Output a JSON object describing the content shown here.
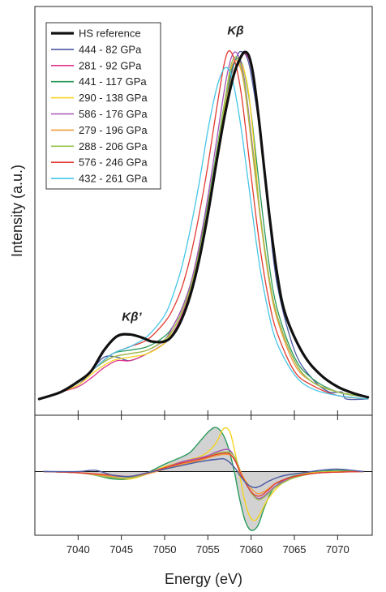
{
  "chart_data": [
    {
      "type": "line",
      "panel": "spectra",
      "ylabel": "Intensity (a.u.)",
      "xlim": [
        7035,
        7074
      ],
      "ylim": [
        0,
        1.0
      ],
      "grid": false,
      "legend_position": "top-left",
      "annotations": [
        {
          "text": "Kβ",
          "x": 7058.2,
          "y": 1.045
        },
        {
          "text": "Kβ’",
          "x": 7046.2,
          "y": 0.225
        }
      ],
      "series": [
        {
          "name": "HS reference",
          "color": "#111111",
          "width": 3.2,
          "x": [
            7035.5,
            7038,
            7040,
            7041.5,
            7043,
            7044.5,
            7046,
            7047.5,
            7048.5,
            7050,
            7051,
            7052,
            7053,
            7054,
            7055,
            7056,
            7057,
            7058,
            7058.8,
            7059.3,
            7059.8,
            7060.3,
            7061,
            7062,
            7063,
            7064,
            7066,
            7068,
            7070,
            7072,
            7073.5
          ],
          "y": [
            0.0,
            0.02,
            0.05,
            0.08,
            0.14,
            0.18,
            0.185,
            0.175,
            0.165,
            0.165,
            0.185,
            0.23,
            0.3,
            0.4,
            0.53,
            0.68,
            0.82,
            0.93,
            0.98,
            0.995,
            0.98,
            0.92,
            0.78,
            0.55,
            0.36,
            0.24,
            0.13,
            0.07,
            0.035,
            0.015,
            0.005
          ]
        },
        {
          "name": "444 - 82 GPa",
          "color": "#4b5aa3",
          "width": 1.3,
          "x": [
            7035.5,
            7038,
            7040,
            7041.5,
            7043,
            7044.5,
            7046,
            7048,
            7050,
            7051,
            7052,
            7053,
            7054,
            7055,
            7056,
            7057,
            7057.8,
            7058.5,
            7059,
            7059.5,
            7060,
            7061,
            7062,
            7063,
            7065,
            7067,
            7069,
            7070.5,
            7071,
            7073.5
          ],
          "y": [
            0.0,
            0.02,
            0.04,
            0.08,
            0.12,
            0.12,
            0.11,
            0.13,
            0.16,
            0.19,
            0.24,
            0.31,
            0.41,
            0.54,
            0.69,
            0.84,
            0.94,
            0.99,
            0.995,
            0.98,
            0.93,
            0.77,
            0.54,
            0.33,
            0.14,
            0.06,
            0.02,
            0.02,
            0.0,
            0.0
          ]
        },
        {
          "name": "281 - 92 GPa",
          "color": "#e0338a",
          "width": 1.3,
          "x": [
            7035.5,
            7038,
            7040,
            7041.5,
            7043,
            7044.5,
            7046,
            7048,
            7050,
            7051,
            7052,
            7053,
            7054,
            7055,
            7056,
            7057,
            7058,
            7058.8,
            7059.3,
            7059.8,
            7060.3,
            7061,
            7062,
            7063,
            7064,
            7066,
            7068,
            7070,
            7072,
            7073.5
          ],
          "y": [
            0.0,
            0.02,
            0.035,
            0.06,
            0.09,
            0.11,
            0.11,
            0.13,
            0.16,
            0.19,
            0.24,
            0.31,
            0.41,
            0.54,
            0.69,
            0.83,
            0.93,
            0.98,
            0.99,
            0.97,
            0.91,
            0.78,
            0.55,
            0.36,
            0.24,
            0.13,
            0.07,
            0.035,
            0.015,
            0.005
          ]
        },
        {
          "name": "441 - 117 GPa",
          "color": "#2a9a5b",
          "width": 1.3,
          "x": [
            7035.5,
            7038,
            7040,
            7042,
            7044,
            7046,
            7048,
            7050,
            7051,
            7052,
            7053,
            7054,
            7055,
            7056,
            7057,
            7057.8,
            7058.3,
            7058.8,
            7059.3,
            7060,
            7061,
            7062,
            7063,
            7065,
            7067,
            7070,
            7073.5
          ],
          "y": [
            0.0,
            0.02,
            0.05,
            0.09,
            0.13,
            0.14,
            0.15,
            0.18,
            0.21,
            0.26,
            0.33,
            0.43,
            0.56,
            0.71,
            0.86,
            0.95,
            0.975,
            0.97,
            0.93,
            0.82,
            0.6,
            0.4,
            0.26,
            0.12,
            0.06,
            0.02,
            0.005
          ]
        },
        {
          "name": "290 - 138 GPa",
          "color": "#f5d31f",
          "width": 1.3,
          "x": [
            7035.5,
            7038,
            7040,
            7042,
            7044,
            7046,
            7048,
            7050,
            7051,
            7052,
            7053,
            7054,
            7055,
            7056,
            7057,
            7058,
            7058.6,
            7059.1,
            7059.7,
            7060.3,
            7061,
            7062,
            7063,
            7065,
            7067,
            7070,
            7073.5
          ],
          "y": [
            0.0,
            0.02,
            0.04,
            0.08,
            0.11,
            0.12,
            0.13,
            0.16,
            0.2,
            0.25,
            0.32,
            0.42,
            0.55,
            0.7,
            0.84,
            0.94,
            0.965,
            0.95,
            0.88,
            0.74,
            0.54,
            0.36,
            0.24,
            0.11,
            0.05,
            0.02,
            0.005
          ]
        },
        {
          "name": "586 - 176 GPa",
          "color": "#a852b8",
          "width": 1.3,
          "x": [
            7035.5,
            7038,
            7040,
            7042,
            7044,
            7046,
            7048,
            7050,
            7051,
            7052,
            7053,
            7054,
            7055,
            7056,
            7057,
            7057.6,
            7058.1,
            7058.6,
            7059.2,
            7060,
            7061,
            7062,
            7063,
            7065,
            7067,
            7070,
            7073.5
          ],
          "y": [
            0.0,
            0.02,
            0.05,
            0.09,
            0.12,
            0.13,
            0.14,
            0.17,
            0.21,
            0.26,
            0.33,
            0.44,
            0.58,
            0.74,
            0.9,
            0.97,
            0.995,
            0.98,
            0.92,
            0.76,
            0.54,
            0.36,
            0.24,
            0.11,
            0.05,
            0.02,
            0.005
          ]
        },
        {
          "name": "279 - 196 GPa",
          "color": "#f29a3c",
          "width": 1.3,
          "x": [
            7035.5,
            7038,
            7040,
            7042,
            7044,
            7046,
            7048,
            7050,
            7051,
            7052,
            7053,
            7054,
            7055,
            7056,
            7057,
            7057.6,
            7058.1,
            7058.6,
            7059.2,
            7060,
            7061,
            7062,
            7063,
            7065,
            7067,
            7070,
            7073.5
          ],
          "y": [
            0.0,
            0.02,
            0.05,
            0.09,
            0.12,
            0.13,
            0.14,
            0.17,
            0.2,
            0.25,
            0.32,
            0.42,
            0.55,
            0.7,
            0.86,
            0.94,
            0.97,
            0.96,
            0.9,
            0.74,
            0.53,
            0.35,
            0.23,
            0.1,
            0.05,
            0.02,
            0.005
          ]
        },
        {
          "name": "288 - 206 GPa",
          "color": "#96c24a",
          "width": 1.3,
          "x": [
            7035.5,
            7038,
            7040,
            7042,
            7044,
            7046,
            7048,
            7050,
            7051,
            7052,
            7053,
            7054,
            7055,
            7056,
            7057,
            7057.6,
            7058.1,
            7058.6,
            7059.2,
            7060,
            7061,
            7062,
            7063,
            7065,
            7067,
            7070,
            7073.5
          ],
          "y": [
            0.0,
            0.02,
            0.05,
            0.09,
            0.12,
            0.13,
            0.14,
            0.17,
            0.2,
            0.25,
            0.32,
            0.42,
            0.55,
            0.7,
            0.86,
            0.95,
            0.98,
            0.97,
            0.91,
            0.75,
            0.54,
            0.36,
            0.24,
            0.11,
            0.05,
            0.02,
            0.005
          ]
        },
        {
          "name": "576 - 246 GPa",
          "color": "#e23a32",
          "width": 1.3,
          "x": [
            7035.5,
            7038,
            7040,
            7042,
            7044,
            7046,
            7048,
            7050,
            7051,
            7052,
            7053,
            7054,
            7055,
            7056,
            7056.8,
            7057.3,
            7057.8,
            7058.4,
            7059,
            7060,
            7061,
            7062,
            7063,
            7065,
            7067,
            7070,
            7073.5
          ],
          "y": [
            0.0,
            0.02,
            0.05,
            0.09,
            0.13,
            0.15,
            0.17,
            0.22,
            0.26,
            0.32,
            0.41,
            0.53,
            0.67,
            0.83,
            0.95,
            0.995,
            0.99,
            0.94,
            0.85,
            0.64,
            0.44,
            0.29,
            0.19,
            0.08,
            0.04,
            0.01,
            0.0
          ]
        },
        {
          "name": "432 - 261 GPa",
          "color": "#45c6e6",
          "width": 1.3,
          "x": [
            7035.5,
            7038,
            7040,
            7042,
            7044,
            7046,
            7048,
            7050,
            7051,
            7052,
            7053,
            7054,
            7055,
            7056,
            7056.7,
            7057.2,
            7057.7,
            7058.3,
            7059,
            7060,
            7061,
            7062,
            7063,
            7065,
            7067,
            7070,
            7073.5
          ],
          "y": [
            0.0,
            0.02,
            0.05,
            0.09,
            0.13,
            0.15,
            0.18,
            0.24,
            0.3,
            0.38,
            0.49,
            0.62,
            0.77,
            0.89,
            0.94,
            0.95,
            0.93,
            0.86,
            0.75,
            0.56,
            0.38,
            0.25,
            0.16,
            0.07,
            0.03,
            0.01,
            0.0
          ]
        }
      ]
    },
    {
      "type": "area",
      "panel": "difference",
      "xlabel": "Energy (eV)",
      "xlim": [
        7035,
        7074
      ],
      "xticks": [
        7040,
        7045,
        7050,
        7055,
        7060,
        7065,
        7070
      ],
      "ylim": [
        -0.52,
        0.46
      ],
      "zero_line": true,
      "series": [
        {
          "color": "#2a9a5b",
          "filled": true,
          "x": [
            7036,
            7040,
            7042,
            7044,
            7046,
            7048,
            7050,
            7052,
            7053,
            7054,
            7055,
            7055.8,
            7056.5,
            7057.2,
            7058,
            7058.6,
            7059.3,
            7060,
            7060.8,
            7061.5,
            7062.5,
            7064,
            7066,
            7068,
            7070,
            7073
          ],
          "y": [
            0,
            -0.01,
            -0.03,
            -0.06,
            -0.06,
            -0.01,
            0.06,
            0.12,
            0.16,
            0.24,
            0.32,
            0.36,
            0.33,
            0.23,
            0.02,
            -0.2,
            -0.4,
            -0.48,
            -0.44,
            -0.3,
            -0.15,
            -0.06,
            -0.02,
            0.0,
            0.01,
            0
          ]
        },
        {
          "color": "#f5d31f",
          "filled": false,
          "x": [
            7036,
            7040,
            7042,
            7044,
            7046,
            7048,
            7050,
            7052,
            7053,
            7054,
            7055,
            7056,
            7056.8,
            7057.5,
            7058,
            7058.6,
            7059.2,
            7059.8,
            7060.4,
            7061,
            7062,
            7063.5,
            7065,
            7067,
            7070,
            7073
          ],
          "y": [
            0,
            -0.01,
            -0.02,
            -0.05,
            -0.06,
            -0.02,
            0.04,
            0.08,
            0.1,
            0.12,
            0.16,
            0.24,
            0.35,
            0.33,
            0.2,
            0.0,
            -0.22,
            -0.36,
            -0.4,
            -0.35,
            -0.22,
            -0.1,
            -0.04,
            -0.01,
            0.0,
            0
          ]
        },
        {
          "color": "#a852b8",
          "filled": false,
          "x": [
            7036,
            7040,
            7044,
            7046,
            7048,
            7050,
            7052,
            7054,
            7055,
            7056,
            7057,
            7057.6,
            7058.2,
            7058.8,
            7059.5,
            7060.2,
            7061,
            7062,
            7063,
            7065,
            7068,
            7073
          ],
          "y": [
            0,
            -0.01,
            -0.05,
            -0.05,
            -0.02,
            0.03,
            0.08,
            0.11,
            0.13,
            0.16,
            0.18,
            0.17,
            0.1,
            -0.01,
            -0.11,
            -0.19,
            -0.22,
            -0.17,
            -0.11,
            -0.04,
            -0.01,
            0
          ]
        },
        {
          "color": "#96c24a",
          "filled": false,
          "x": [
            7036,
            7040,
            7044,
            7046,
            7048,
            7050,
            7052,
            7054,
            7055,
            7056,
            7057,
            7057.7,
            7058.3,
            7058.9,
            7059.6,
            7060.3,
            7061,
            7062,
            7063,
            7065,
            7068,
            7073
          ],
          "y": [
            0,
            -0.01,
            -0.05,
            -0.05,
            -0.02,
            0.03,
            0.07,
            0.1,
            0.12,
            0.15,
            0.16,
            0.15,
            0.09,
            -0.02,
            -0.12,
            -0.2,
            -0.23,
            -0.18,
            -0.12,
            -0.05,
            -0.01,
            0
          ]
        },
        {
          "color": "#f29a3c",
          "filled": false,
          "x": [
            7036,
            7040,
            7044,
            7046,
            7048,
            7050,
            7052,
            7054,
            7055,
            7056,
            7057,
            7057.7,
            7058.3,
            7058.9,
            7059.6,
            7060.3,
            7061,
            7062,
            7063,
            7065,
            7068,
            7073
          ],
          "y": [
            0,
            -0.01,
            -0.04,
            -0.04,
            -0.02,
            0.02,
            0.06,
            0.09,
            0.11,
            0.13,
            0.14,
            0.13,
            0.07,
            -0.02,
            -0.1,
            -0.16,
            -0.18,
            -0.14,
            -0.09,
            -0.04,
            -0.01,
            0
          ]
        },
        {
          "color": "#e23a32",
          "filled": false,
          "x": [
            7036,
            7040,
            7044,
            7046,
            7048,
            7050,
            7052,
            7054,
            7055,
            7056,
            7057,
            7057.6,
            7058.2,
            7058.8,
            7059.5,
            7060.2,
            7061,
            7062,
            7063,
            7065,
            7068,
            7073
          ],
          "y": [
            0,
            -0.01,
            -0.03,
            -0.04,
            -0.01,
            0.03,
            0.07,
            0.1,
            0.12,
            0.14,
            0.15,
            0.14,
            0.08,
            -0.02,
            -0.11,
            -0.18,
            -0.2,
            -0.15,
            -0.09,
            -0.04,
            -0.01,
            0
          ]
        },
        {
          "color": "#4b5aa3",
          "filled": false,
          "x": [
            7036,
            7040,
            7042,
            7044,
            7046,
            7048,
            7050,
            7052,
            7054,
            7056,
            7057,
            7058,
            7058.8,
            7059.5,
            7060.3,
            7061,
            7062,
            7063,
            7064,
            7066,
            7068,
            7070,
            7073
          ],
          "y": [
            0,
            0.0,
            0.01,
            -0.03,
            -0.04,
            -0.01,
            0.02,
            0.05,
            0.08,
            0.1,
            0.1,
            0.04,
            -0.04,
            -0.1,
            -0.13,
            -0.12,
            -0.08,
            -0.05,
            -0.03,
            -0.01,
            0.01,
            0.02,
            0
          ]
        }
      ]
    }
  ]
}
